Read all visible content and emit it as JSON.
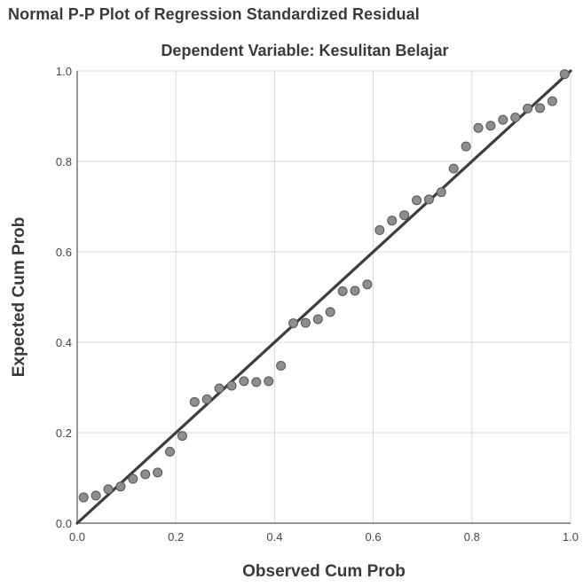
{
  "chart_data": {
    "type": "scatter",
    "title": "Normal P-P Plot of Regression Standardized Residual",
    "subtitle": "Dependent Variable: Kesulitan Belajar",
    "xlabel": "Observed Cum Prob",
    "ylabel": "Expected Cum Prob",
    "xlim": [
      0,
      1
    ],
    "ylim": [
      0,
      1
    ],
    "x_ticks": [
      "0.0",
      "0.2",
      "0.4",
      "0.6",
      "0.8",
      "1.0"
    ],
    "y_ticks": [
      "0.0",
      "0.2",
      "0.4",
      "0.6",
      "0.8",
      "1.0"
    ],
    "grid": true,
    "reference_line": {
      "from": [
        0,
        0
      ],
      "to": [
        1,
        1
      ]
    },
    "points": [
      {
        "x": 0.013,
        "y": 0.057
      },
      {
        "x": 0.038,
        "y": 0.061
      },
      {
        "x": 0.063,
        "y": 0.075
      },
      {
        "x": 0.088,
        "y": 0.081
      },
      {
        "x": 0.113,
        "y": 0.098
      },
      {
        "x": 0.138,
        "y": 0.108
      },
      {
        "x": 0.163,
        "y": 0.112
      },
      {
        "x": 0.188,
        "y": 0.158
      },
      {
        "x": 0.213,
        "y": 0.193
      },
      {
        "x": 0.238,
        "y": 0.268
      },
      {
        "x": 0.263,
        "y": 0.274
      },
      {
        "x": 0.288,
        "y": 0.298
      },
      {
        "x": 0.313,
        "y": 0.304
      },
      {
        "x": 0.338,
        "y": 0.314
      },
      {
        "x": 0.363,
        "y": 0.312
      },
      {
        "x": 0.388,
        "y": 0.314
      },
      {
        "x": 0.413,
        "y": 0.348
      },
      {
        "x": 0.438,
        "y": 0.442
      },
      {
        "x": 0.463,
        "y": 0.443
      },
      {
        "x": 0.488,
        "y": 0.451
      },
      {
        "x": 0.513,
        "y": 0.467
      },
      {
        "x": 0.538,
        "y": 0.513
      },
      {
        "x": 0.563,
        "y": 0.514
      },
      {
        "x": 0.588,
        "y": 0.528
      },
      {
        "x": 0.613,
        "y": 0.648
      },
      {
        "x": 0.638,
        "y": 0.669
      },
      {
        "x": 0.663,
        "y": 0.681
      },
      {
        "x": 0.688,
        "y": 0.714
      },
      {
        "x": 0.713,
        "y": 0.716
      },
      {
        "x": 0.738,
        "y": 0.732
      },
      {
        "x": 0.763,
        "y": 0.784
      },
      {
        "x": 0.788,
        "y": 0.833
      },
      {
        "x": 0.813,
        "y": 0.874
      },
      {
        "x": 0.838,
        "y": 0.879
      },
      {
        "x": 0.863,
        "y": 0.892
      },
      {
        "x": 0.888,
        "y": 0.897
      },
      {
        "x": 0.913,
        "y": 0.917
      },
      {
        "x": 0.938,
        "y": 0.918
      },
      {
        "x": 0.963,
        "y": 0.933
      },
      {
        "x": 0.988,
        "y": 0.993
      }
    ],
    "colors": {
      "point_fill": "#8e8e8e",
      "point_stroke": "#555555",
      "line": "#3d3d3d",
      "grid": "#d9d9d9",
      "axis": "#555555"
    }
  }
}
